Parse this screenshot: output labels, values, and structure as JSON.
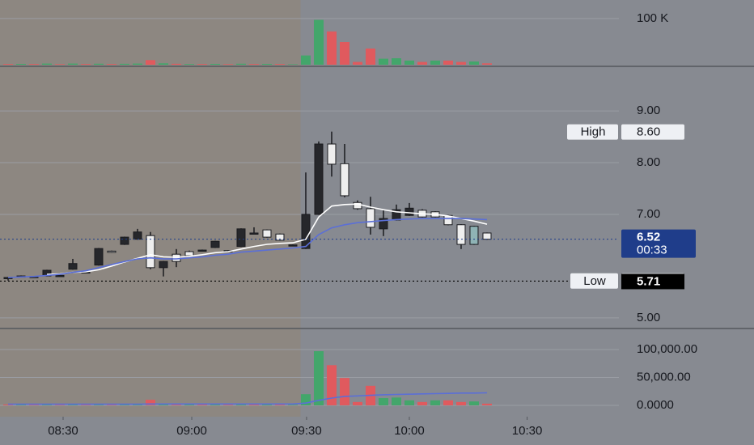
{
  "chart_data": [
    {
      "type": "bar",
      "values": [
        1500,
        1800,
        1500,
        2500,
        1200,
        2500,
        1500,
        2200,
        1500,
        2000,
        2500,
        10000,
        3000,
        2000,
        1500,
        1500,
        1800,
        1200,
        2200,
        1500,
        1800,
        1500,
        1000,
        20000,
        97000,
        72000,
        49000,
        6000,
        35000,
        13000,
        14000,
        9000,
        6000,
        9000,
        9000,
        6000,
        7000,
        3000
      ],
      "colors": [
        "#e05a5e",
        "#43a66b",
        "#e05a5e",
        "#43a66b",
        "#e05a5e",
        "#43a66b",
        "#e05a5e",
        "#43a66b",
        "#e05a5e",
        "#43a66b",
        "#43a66b",
        "#e05a5e",
        "#43a66b",
        "#e05a5e",
        "#43a66b",
        "#e05a5e",
        "#43a66b",
        "#e05a5e",
        "#43a66b",
        "#e05a5e",
        "#43a66b",
        "#e05a5e",
        "#43a66b",
        "#43a66b",
        "#43a66b",
        "#e05a5e",
        "#e05a5e",
        "#e05a5e",
        "#e05a5e",
        "#43a66b",
        "#43a66b",
        "#43a66b",
        "#e05a5e",
        "#43a66b",
        "#e05a5e",
        "#e05a5e",
        "#43a66b",
        "#e05a5e"
      ],
      "ylim": [
        0,
        140000
      ],
      "yticks": [
        {
          "value": 100000,
          "label": "100 K"
        }
      ],
      "grid": true
    },
    {
      "type": "candlestick",
      "open": [
        5.78,
        5.81,
        5.8,
        5.81,
        5.82,
        5.94,
        5.88,
        6.02,
        6.29,
        6.42,
        6.52,
        6.59,
        5.97,
        6.09,
        6.2,
        6.31,
        6.36,
        6.3,
        6.38,
        6.64,
        6.7,
        6.62,
        6.41,
        6.34,
        7.0,
        8.36,
        7.98,
        7.23,
        7.11,
        6.72,
        6.89,
        6.98,
        7.08,
        7.05,
        6.98,
        6.8,
        6.42,
        6.64
      ],
      "high": [
        5.79,
        5.82,
        5.81,
        5.93,
        5.83,
        6.14,
        5.9,
        6.35,
        6.3,
        6.57,
        6.72,
        6.66,
        6.1,
        6.33,
        6.3,
        6.32,
        6.49,
        6.31,
        6.73,
        6.75,
        6.71,
        6.63,
        6.42,
        7.81,
        8.41,
        8.6,
        8.36,
        7.27,
        7.34,
        7.08,
        7.19,
        7.22,
        7.1,
        7.06,
        6.99,
        6.81,
        6.78,
        6.65
      ],
      "low": [
        5.72,
        5.79,
        5.78,
        5.8,
        5.81,
        5.93,
        5.87,
        6.01,
        6.26,
        6.41,
        6.51,
        5.94,
        5.8,
        5.98,
        6.19,
        6.29,
        6.35,
        6.28,
        6.37,
        6.62,
        6.55,
        6.49,
        6.39,
        6.33,
        6.99,
        7.73,
        7.33,
        7.09,
        6.61,
        6.58,
        6.88,
        6.97,
        6.94,
        6.94,
        6.79,
        6.33,
        6.41,
        6.51
      ],
      "close": [
        5.77,
        5.8,
        5.79,
        5.92,
        5.82,
        6.05,
        5.89,
        6.34,
        6.27,
        6.56,
        6.66,
        5.97,
        6.09,
        6.23,
        6.28,
        6.3,
        6.48,
        6.29,
        6.72,
        6.63,
        6.56,
        6.5,
        6.4,
        7.0,
        8.36,
        7.97,
        7.36,
        7.11,
        6.75,
        6.92,
        7.09,
        7.12,
        6.95,
        6.95,
        6.8,
        6.42,
        6.77,
        6.52
      ],
      "colors": [
        "#26272b",
        "#26272b",
        "#26272b",
        "#26272b",
        "#26272b",
        "#26272b",
        "#26272b",
        "#26272b",
        "#eeeeee",
        "#26272b",
        "#26272b",
        "#eeeeee",
        "#26272b",
        "#eeeeee",
        "#eeeeee",
        "#26272b",
        "#26272b",
        "#26272b",
        "#26272b",
        "#26272b",
        "#eeeeee",
        "#eeeeee",
        "#26272b",
        "#26272b",
        "#26272b",
        "#eeeeee",
        "#eeeeee",
        "#eeeeee",
        "#eeeeee",
        "#26272b",
        "#26272b",
        "#26272b",
        "#eeeeee",
        "#eeeeee",
        "#eeeeee",
        "#eeeeee",
        "#8fb3b5",
        "#eeeeee"
      ],
      "series": [
        {
          "color": "#ffffff",
          "values": [
            null,
            null,
            null,
            5.84,
            5.85,
            5.88,
            5.89,
            5.93,
            6.0,
            6.08,
            6.15,
            6.22,
            6.18,
            6.17,
            6.19,
            6.22,
            6.26,
            6.28,
            6.33,
            6.38,
            6.42,
            6.44,
            6.45,
            6.52,
            6.95,
            7.16,
            7.19,
            7.2,
            7.14,
            7.09,
            7.05,
            7.03,
            7.01,
            7.0,
            6.97,
            6.92,
            6.87,
            6.81
          ]
        },
        {
          "color": "#5b6fd6",
          "values": [
            5.78,
            5.79,
            5.8,
            5.82,
            5.84,
            5.88,
            5.91,
            5.97,
            6.03,
            6.09,
            6.14,
            6.16,
            6.14,
            6.14,
            6.16,
            6.18,
            6.21,
            6.23,
            6.27,
            6.29,
            6.31,
            6.33,
            6.35,
            6.38,
            6.61,
            6.74,
            6.8,
            6.84,
            6.86,
            6.88,
            6.9,
            6.91,
            6.92,
            6.92,
            6.92,
            6.92,
            6.91,
            6.9
          ]
        }
      ],
      "ylim": [
        4.81,
        9.83
      ],
      "yticks": [
        {
          "value": 9,
          "label": "9.00"
        },
        {
          "value": 8,
          "label": "8.00"
        },
        {
          "value": 7,
          "label": "7.00"
        },
        {
          "value": 5,
          "label": "5.00"
        }
      ],
      "xlim": [
        -0.625,
        47.19
      ],
      "xticks": [
        {
          "value": 4.25,
          "label": "08:30"
        },
        {
          "value": 14.19,
          "label": "09:00"
        },
        {
          "value": 23.06,
          "label": "09:30"
        },
        {
          "value": 31.0,
          "label": "10:00"
        },
        {
          "value": 40.1,
          "label": "10:30"
        }
      ],
      "grid": true,
      "session_end": 22.6,
      "session_color": "#8d8781",
      "high_marker": {
        "text": "High",
        "value": 8.6,
        "value_label": "8.60"
      },
      "low_marker": {
        "text": "Low",
        "value": 5.72
      },
      "last_price": {
        "value": 6.52,
        "countdown": "00:33",
        "color": "#1f3d8a"
      },
      "bid_line": {
        "value": 5.71,
        "color": "#000000"
      }
    },
    {
      "type": "bar",
      "values": [
        1500,
        1800,
        1500,
        2500,
        1200,
        2500,
        1500,
        2200,
        1500,
        2000,
        2500,
        10000,
        3000,
        2000,
        1500,
        1500,
        1800,
        1200,
        2200,
        1500,
        1800,
        1500,
        1000,
        20000,
        97000,
        72000,
        49000,
        6000,
        35000,
        13000,
        14000,
        9000,
        6000,
        9000,
        9000,
        6000,
        7000,
        3000
      ],
      "colors": [
        "#e05a5e",
        "#43a66b",
        "#e05a5e",
        "#43a66b",
        "#e05a5e",
        "#43a66b",
        "#e05a5e",
        "#43a66b",
        "#e05a5e",
        "#43a66b",
        "#43a66b",
        "#e05a5e",
        "#43a66b",
        "#e05a5e",
        "#43a66b",
        "#e05a5e",
        "#43a66b",
        "#e05a5e",
        "#43a66b",
        "#e05a5e",
        "#43a66b",
        "#e05a5e",
        "#43a66b",
        "#43a66b",
        "#43a66b",
        "#e05a5e",
        "#e05a5e",
        "#e05a5e",
        "#e05a5e",
        "#43a66b",
        "#43a66b",
        "#43a66b",
        "#e05a5e",
        "#43a66b",
        "#e05a5e",
        "#e05a5e",
        "#43a66b",
        "#e05a5e"
      ],
      "series": [
        {
          "color": "#5b6fd6",
          "values": [
            2000,
            2000,
            2000,
            2000,
            2000,
            2000,
            2000,
            2000,
            2000,
            2000,
            2000,
            2500,
            2500,
            2500,
            2500,
            2500,
            2500,
            2500,
            2500,
            2500,
            2500,
            2500,
            2500,
            4000,
            9000,
            13000,
            16000,
            17000,
            18000,
            19000,
            19500,
            20000,
            20500,
            21000,
            21500,
            22000,
            22000,
            22500
          ]
        }
      ],
      "ylim": [
        -20300,
        136200
      ],
      "yticks": [
        {
          "value": 100000,
          "label": "100,000.00"
        },
        {
          "value": 50000,
          "label": "50,000.00"
        },
        {
          "value": 0,
          "label": "0.0000"
        }
      ],
      "grid": true
    }
  ]
}
